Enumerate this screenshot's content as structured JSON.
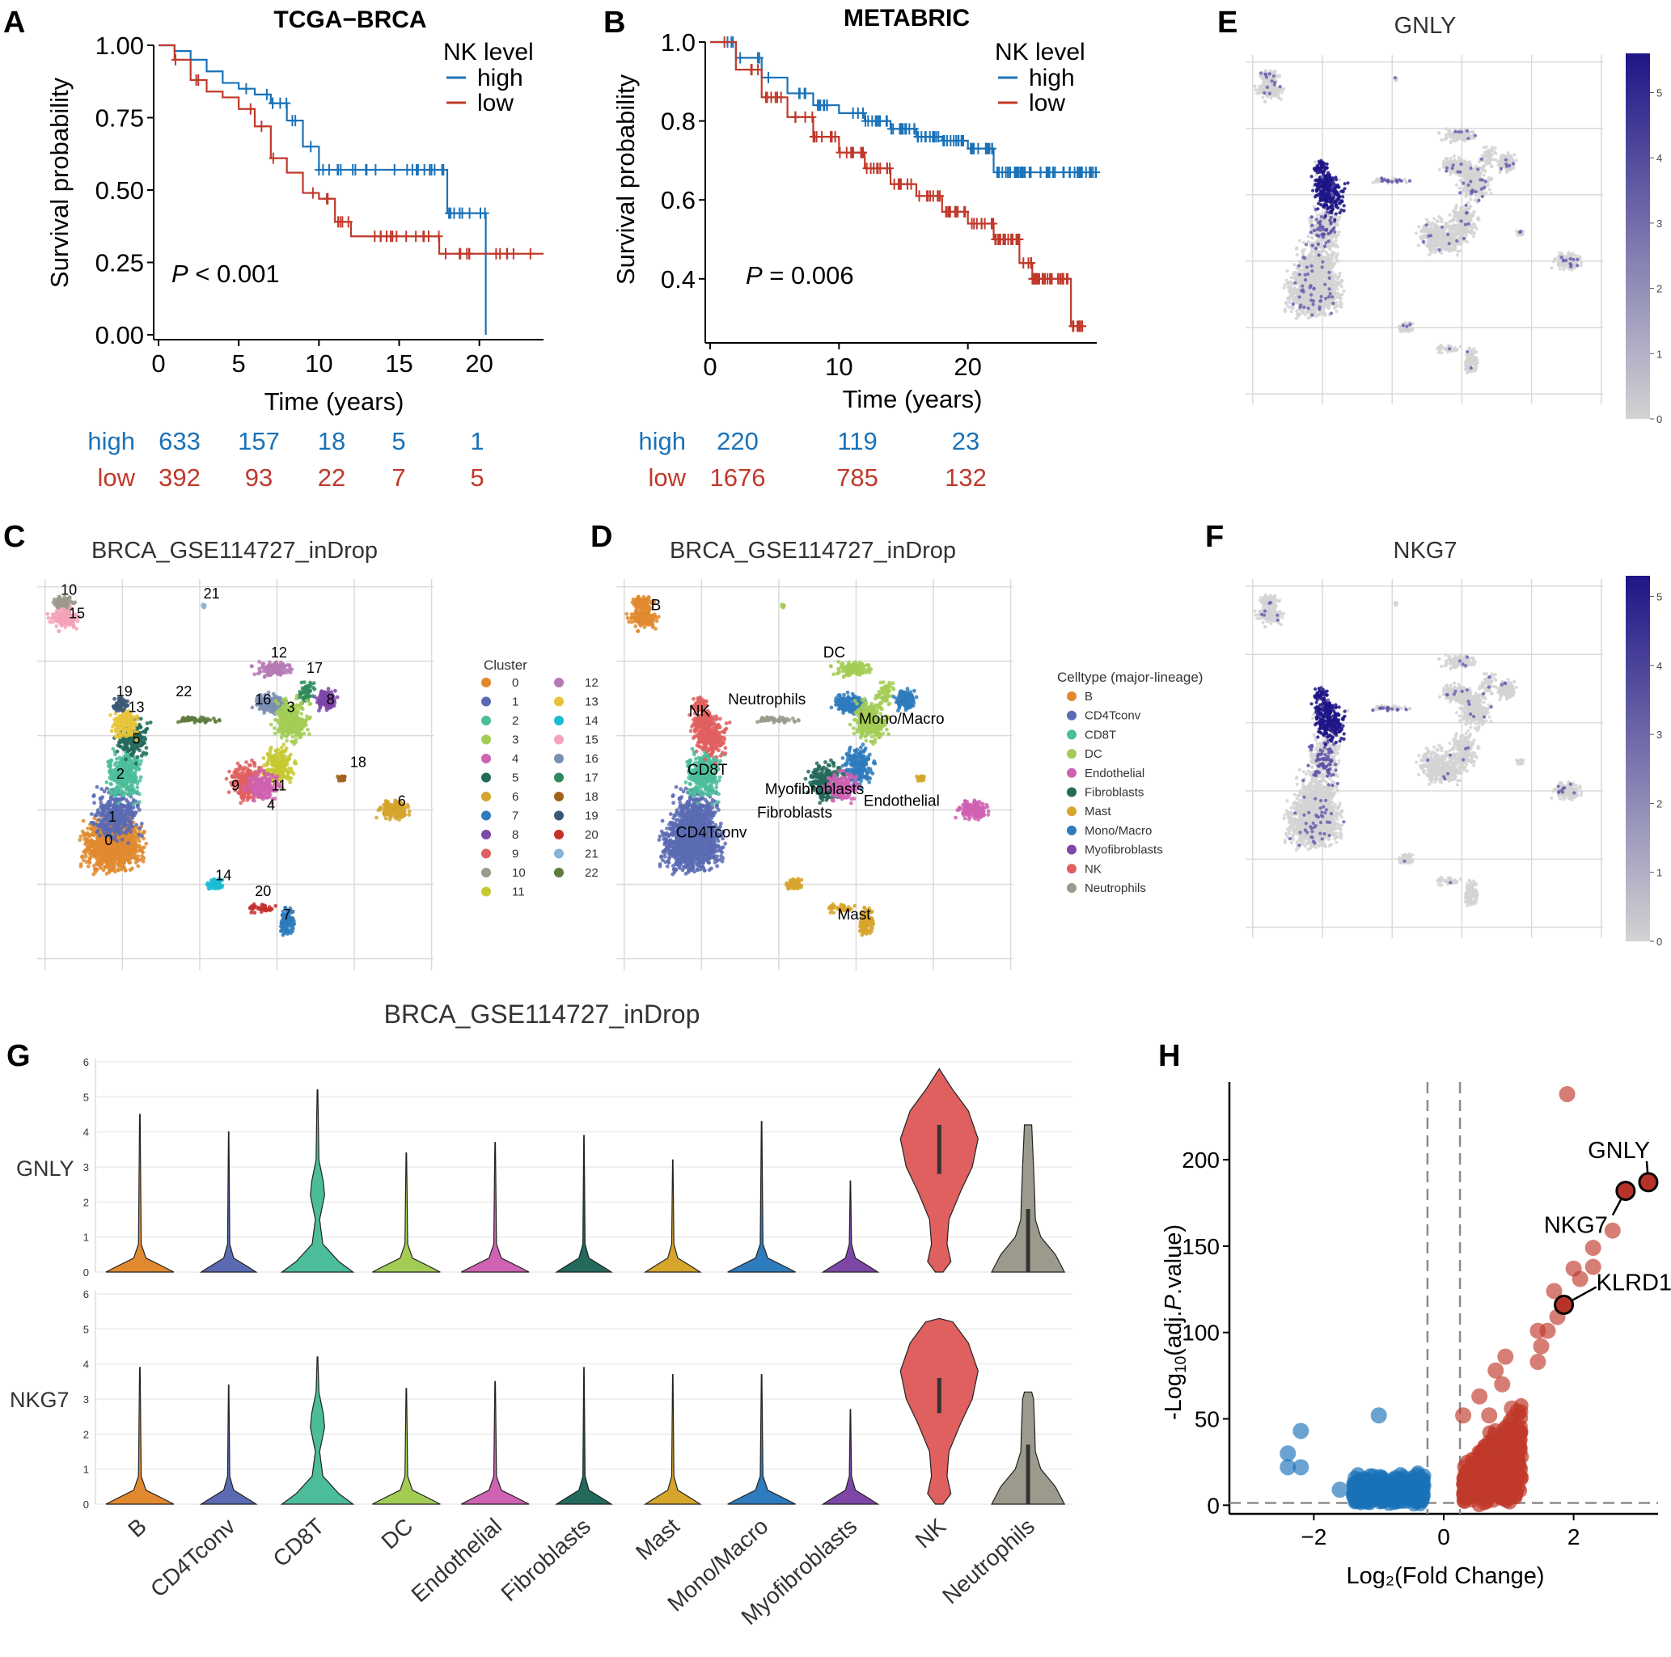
{
  "colors": {
    "high": "#1a72b8",
    "low": "#c0392b",
    "grey_cell": "#cfcfcf",
    "grid": "#dadada",
    "expr_low": "#d3d3d3",
    "expr_high": "#1f1587",
    "volcano_up": "#c0392b",
    "volcano_down": "#1a72b8",
    "dashed": "#8c8c8c"
  },
  "panel_labels": [
    "A",
    "B",
    "C",
    "D",
    "E",
    "F",
    "G",
    "H"
  ],
  "chart_data": [
    {
      "id": "A",
      "type": "line",
      "subtype": "kaplan-meier",
      "title": "TCGA−BRCA",
      "xlabel": "Time (years)",
      "ylabel": "Survival probability",
      "xlim": [
        0,
        24
      ],
      "ylim": [
        0,
        1
      ],
      "xticks": [
        "0",
        "5",
        "10",
        "15",
        "20"
      ],
      "yticks": [
        "0.00",
        "0.25",
        "0.50",
        "0.75",
        "1.00"
      ],
      "legend_title": "NK level",
      "legend_position": "top-right",
      "pvalue_prefix": "P",
      "pvalue_text": " < 0.001",
      "series": [
        {
          "name": "high",
          "x": [
            0,
            1,
            2,
            3,
            4,
            5,
            6,
            7,
            8,
            9,
            10,
            11,
            14,
            18,
            18,
            20.4,
            20.4
          ],
          "y": [
            1.0,
            0.98,
            0.95,
            0.91,
            0.87,
            0.85,
            0.83,
            0.8,
            0.74,
            0.65,
            0.57,
            0.57,
            0.57,
            0.57,
            0.42,
            0.42,
            0.0
          ]
        },
        {
          "name": "low",
          "x": [
            0,
            1,
            2,
            3,
            4,
            5,
            6,
            7,
            8,
            9,
            10,
            11,
            12,
            14,
            17.5,
            17.5,
            24
          ],
          "y": [
            1.0,
            0.95,
            0.88,
            0.84,
            0.82,
            0.78,
            0.72,
            0.61,
            0.56,
            0.49,
            0.47,
            0.39,
            0.34,
            0.34,
            0.34,
            0.28,
            0.28
          ]
        }
      ],
      "risk_table": {
        "times": [
          "0",
          "5",
          "10",
          "15",
          "20"
        ],
        "rows": [
          {
            "group": "high",
            "counts": [
              "633",
              "157",
              "18",
              "5",
              "1"
            ]
          },
          {
            "group": "low",
            "counts": [
              "392",
              "93",
              "22",
              "7",
              "5"
            ]
          }
        ]
      }
    },
    {
      "id": "B",
      "type": "line",
      "subtype": "kaplan-meier",
      "title": "METABRIC",
      "xlabel": "Time (years)",
      "ylabel": "Survival probability",
      "xlim": [
        0,
        30
      ],
      "ylim": [
        0.25,
        1.0
      ],
      "xticks": [
        "0",
        "10",
        "20"
      ],
      "yticks": [
        "0.4",
        "0.6",
        "0.8",
        "1.0"
      ],
      "legend_title": "NK level",
      "legend_position": "top-right",
      "pvalue_prefix": "P",
      "pvalue_text": " = 0.006",
      "series": [
        {
          "name": "high",
          "x": [
            0,
            2,
            4,
            6,
            8,
            10,
            12,
            14,
            16,
            18,
            20,
            22,
            30
          ],
          "y": [
            1.0,
            0.96,
            0.91,
            0.87,
            0.84,
            0.82,
            0.8,
            0.78,
            0.76,
            0.75,
            0.73,
            0.67,
            0.67
          ]
        },
        {
          "name": "low",
          "x": [
            0,
            2,
            4,
            6,
            8,
            10,
            12,
            14,
            16,
            18,
            20,
            22,
            24,
            25,
            27,
            28,
            29
          ],
          "y": [
            1.0,
            0.93,
            0.86,
            0.81,
            0.76,
            0.72,
            0.68,
            0.64,
            0.61,
            0.57,
            0.54,
            0.5,
            0.44,
            0.4,
            0.4,
            0.28,
            0.28
          ]
        }
      ],
      "risk_table": {
        "times": [
          "0",
          "10",
          "20"
        ],
        "rows": [
          {
            "group": "high",
            "counts": [
              "220",
              "119",
              "23"
            ]
          },
          {
            "group": "low",
            "counts": [
              "1676",
              "785",
              "132"
            ]
          }
        ]
      }
    },
    {
      "id": "C",
      "type": "scatter",
      "subtype": "umap",
      "title": "BRCA_GSE114727_inDrop",
      "legend_title": "Cluster",
      "legend_position": "right",
      "clusters": [
        {
          "label": "0",
          "color": "#e1892f"
        },
        {
          "label": "1",
          "color": "#5a6bb3"
        },
        {
          "label": "2",
          "color": "#4bbd9a"
        },
        {
          "label": "3",
          "color": "#a3cc55"
        },
        {
          "label": "4",
          "color": "#cf62b3"
        },
        {
          "label": "5",
          "color": "#236a5c"
        },
        {
          "label": "6",
          "color": "#d6a52c"
        },
        {
          "label": "7",
          "color": "#2e7bbd"
        },
        {
          "label": "8",
          "color": "#7d47a8"
        },
        {
          "label": "9",
          "color": "#e05f5f"
        },
        {
          "label": "10",
          "color": "#9b9a8c"
        },
        {
          "label": "11",
          "color": "#c7c930"
        },
        {
          "label": "12",
          "color": "#b57ab5"
        },
        {
          "label": "13",
          "color": "#e8c43a"
        },
        {
          "label": "14",
          "color": "#1bbcd3"
        },
        {
          "label": "15",
          "color": "#f5a3b9"
        },
        {
          "label": "16",
          "color": "#7b8fb3"
        },
        {
          "label": "17",
          "color": "#2f8a5c"
        },
        {
          "label": "18",
          "color": "#a0631d"
        },
        {
          "label": "19",
          "color": "#3b5877"
        },
        {
          "label": "20",
          "color": "#c4302b"
        },
        {
          "label": "21",
          "color": "#87b4d8"
        },
        {
          "label": "22",
          "color": "#5e7a3e"
        }
      ],
      "cluster_annotations": [
        "10",
        "15",
        "21",
        "12",
        "17",
        "19",
        "13",
        "22",
        "16",
        "3",
        "8",
        "5",
        "2",
        "18",
        "9",
        "11",
        "4",
        "6",
        "1",
        "0",
        "14",
        "20",
        "7"
      ]
    },
    {
      "id": "D",
      "type": "scatter",
      "subtype": "umap",
      "title": "BRCA_GSE114727_inDrop",
      "legend_title": "Celltype (major-lineage)",
      "legend_position": "right",
      "celltypes": [
        {
          "label": "B",
          "color": "#e1892f"
        },
        {
          "label": "CD4Tconv",
          "color": "#5a6bb3"
        },
        {
          "label": "CD8T",
          "color": "#4bbd9a"
        },
        {
          "label": "DC",
          "color": "#a3cc55"
        },
        {
          "label": "Endothelial",
          "color": "#cf62b3"
        },
        {
          "label": "Fibroblasts",
          "color": "#236a5c"
        },
        {
          "label": "Mast",
          "color": "#d6a52c"
        },
        {
          "label": "Mono/Macro",
          "color": "#2e7bbd"
        },
        {
          "label": "Myofibroblasts",
          "color": "#7d47a8"
        },
        {
          "label": "NK",
          "color": "#e05f5f"
        },
        {
          "label": "Neutrophils",
          "color": "#9b9a8c"
        }
      ],
      "annotations": [
        "B",
        "DC",
        "Neutrophils",
        "NK",
        "Mono/Macro",
        "CD8T",
        "Myofibroblasts",
        "Fibroblasts",
        "Endothelial",
        "CD4Tconv",
        "Mast"
      ]
    },
    {
      "id": "E",
      "type": "scatter",
      "subtype": "feature-umap",
      "title": "GNLY",
      "colorbar_ticks": [
        "0",
        "1",
        "2",
        "3",
        "4",
        "5"
      ],
      "colorbar_range": [
        0,
        5.6
      ]
    },
    {
      "id": "F",
      "type": "scatter",
      "subtype": "feature-umap",
      "title": "NKG7",
      "colorbar_ticks": [
        "0",
        "1",
        "2",
        "3",
        "4",
        "5"
      ],
      "colorbar_range": [
        0,
        5.3
      ]
    },
    {
      "id": "G",
      "type": "violin",
      "title": "BRCA_GSE114727_inDrop",
      "categories": [
        "B",
        "CD4Tconv",
        "CD8T",
        "DC",
        "Endothelial",
        "Fibroblasts",
        "Mast",
        "Mono/Macro",
        "Myofibroblasts",
        "NK",
        "Neutrophils"
      ],
      "colors": [
        "#e1892f",
        "#5a6bb3",
        "#4bbd9a",
        "#a3cc55",
        "#cf62b3",
        "#236a5c",
        "#d6a52c",
        "#2e7bbd",
        "#7d47a8",
        "#e05f5f",
        "#9b9a8c"
      ],
      "yticks": [
        "0",
        "1",
        "2",
        "3",
        "4",
        "5",
        "6"
      ],
      "ylim": [
        0,
        6
      ],
      "genes": [
        {
          "name": "GNLY",
          "max": [
            4.5,
            4.0,
            5.2,
            3.4,
            3.7,
            3.9,
            3.2,
            4.3,
            2.6,
            5.8,
            4.2
          ]
        },
        {
          "name": "NKG7",
          "max": [
            3.9,
            3.4,
            4.2,
            3.3,
            3.5,
            3.9,
            3.7,
            3.7,
            2.7,
            5.3,
            3.2
          ]
        }
      ]
    },
    {
      "id": "H",
      "type": "scatter",
      "subtype": "volcano",
      "xlabel": "Log₂(Fold Change)",
      "ylabel_pre": "-Log",
      "ylabel_sub": "10",
      "ylabel_mid": "(adj.",
      "ylabel_italic": "P",
      "ylabel_post": ".value)",
      "xlim": [
        -3.3,
        3.3
      ],
      "ylim": [
        -5,
        245
      ],
      "xticks": [
        "−2",
        "0",
        "2"
      ],
      "yticks": [
        "0",
        "50",
        "100",
        "150",
        "200"
      ],
      "thresholds_x": [
        -0.25,
        0.25
      ],
      "threshold_y": 1.3,
      "labeled_genes": [
        {
          "name": "GNLY",
          "x": 3.15,
          "y": 187
        },
        {
          "name": "NKG7",
          "x": 2.8,
          "y": 182
        },
        {
          "name": "KLRD1",
          "x": 1.85,
          "y": 116
        }
      ],
      "highlighted_points": [
        {
          "x": 1.9,
          "y": 238
        },
        {
          "x": 2.6,
          "y": 159
        },
        {
          "x": 2.3,
          "y": 149
        },
        {
          "x": 2.3,
          "y": 138
        },
        {
          "x": 2.0,
          "y": 137
        },
        {
          "x": 2.1,
          "y": 131
        },
        {
          "x": 1.7,
          "y": 124
        },
        {
          "x": 1.75,
          "y": 109
        },
        {
          "x": 1.45,
          "y": 101
        },
        {
          "x": 1.6,
          "y": 101
        },
        {
          "x": 1.5,
          "y": 92
        },
        {
          "x": 1.45,
          "y": 83
        },
        {
          "x": 0.95,
          "y": 86
        },
        {
          "x": 0.8,
          "y": 78
        },
        {
          "x": 0.9,
          "y": 70
        },
        {
          "x": 0.55,
          "y": 63
        },
        {
          "x": 1.05,
          "y": 56
        },
        {
          "x": 0.7,
          "y": 52
        },
        {
          "x": 0.3,
          "y": 52
        },
        {
          "x": -1.0,
          "y": 52
        },
        {
          "x": -2.2,
          "y": 43
        },
        {
          "x": -2.4,
          "y": 30
        },
        {
          "x": -2.4,
          "y": 22
        },
        {
          "x": -2.2,
          "y": 22
        },
        {
          "x": -1.6,
          "y": 9
        }
      ]
    }
  ]
}
